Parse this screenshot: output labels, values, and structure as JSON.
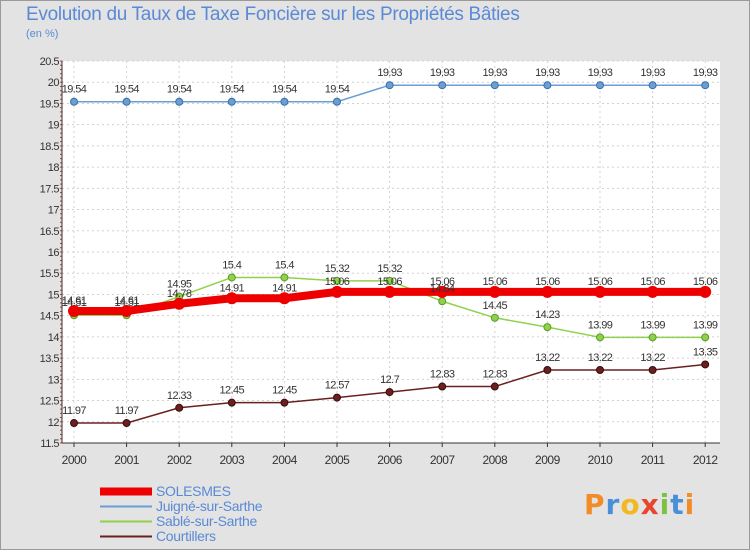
{
  "chart_data": {
    "type": "line",
    "title": "Evolution du Taux de Taxe Foncière sur les Propriétés Bâties",
    "subtitle": "(en %)",
    "x": [
      "2000",
      "2001",
      "2002",
      "2003",
      "2004",
      "2005",
      "2006",
      "2007",
      "2008",
      "2009",
      "2010",
      "2011",
      "2012"
    ],
    "ylim": [
      11.5,
      20.5
    ],
    "yticks": [
      "11.5",
      "12",
      "12.5",
      "13",
      "13.5",
      "14",
      "14.5",
      "15",
      "15.5",
      "16",
      "16.5",
      "17",
      "17.5",
      "18",
      "18.5",
      "19",
      "19.5",
      "20",
      "20.5"
    ],
    "series": [
      {
        "name": "SOLESMES",
        "color": "#ee0000",
        "values": [
          14.61,
          14.61,
          14.78,
          14.91,
          14.91,
          15.06,
          15.06,
          15.06,
          15.06,
          15.06,
          15.06,
          15.06,
          15.06
        ],
        "labels": [
          "14.61",
          "14.61",
          "14.78",
          "14.91",
          "14.91",
          "15.06",
          "15.06",
          "15.06",
          "15.06",
          "15.06",
          "15.06",
          "15.06",
          "15.06"
        ]
      },
      {
        "name": "Juigné-sur-Sarthe",
        "color": "#6a9fd4",
        "values": [
          19.54,
          19.54,
          19.54,
          19.54,
          19.54,
          19.54,
          19.93,
          19.93,
          19.93,
          19.93,
          19.93,
          19.93,
          19.93
        ],
        "labels": [
          "19.54",
          "19.54",
          "19.54",
          "19.54",
          "19.54",
          "19.54",
          "19.93",
          "19.93",
          "19.93",
          "19.93",
          "19.93",
          "19.93",
          "19.93"
        ]
      },
      {
        "name": "Sablé-sur-Sarthe",
        "color": "#8fd24a",
        "values": [
          14.51,
          14.51,
          14.95,
          15.4,
          15.4,
          15.32,
          15.32,
          14.84,
          14.45,
          14.23,
          13.99,
          13.99,
          13.99
        ],
        "labels": [
          "14.51",
          "14.51",
          "14.95",
          "15.4",
          "15.4",
          "15.32",
          "15.32",
          "14.84",
          "14.45",
          "14.23",
          "13.99",
          "13.99",
          "13.99"
        ]
      },
      {
        "name": "Courtillers",
        "color": "#6b2020",
        "values": [
          11.97,
          11.97,
          12.33,
          12.45,
          12.45,
          12.57,
          12.7,
          12.83,
          12.83,
          13.22,
          13.22,
          13.22,
          13.35
        ],
        "labels": [
          "11.97",
          "11.97",
          "12.33",
          "12.45",
          "12.45",
          "12.57",
          "12.7",
          "12.83",
          "12.83",
          "13.22",
          "13.22",
          "13.22",
          "13.35"
        ]
      }
    ],
    "legend_position": "bottom-left"
  },
  "logo": {
    "letters": [
      "P",
      "r",
      "o",
      "x",
      "i",
      "t",
      "i"
    ]
  }
}
